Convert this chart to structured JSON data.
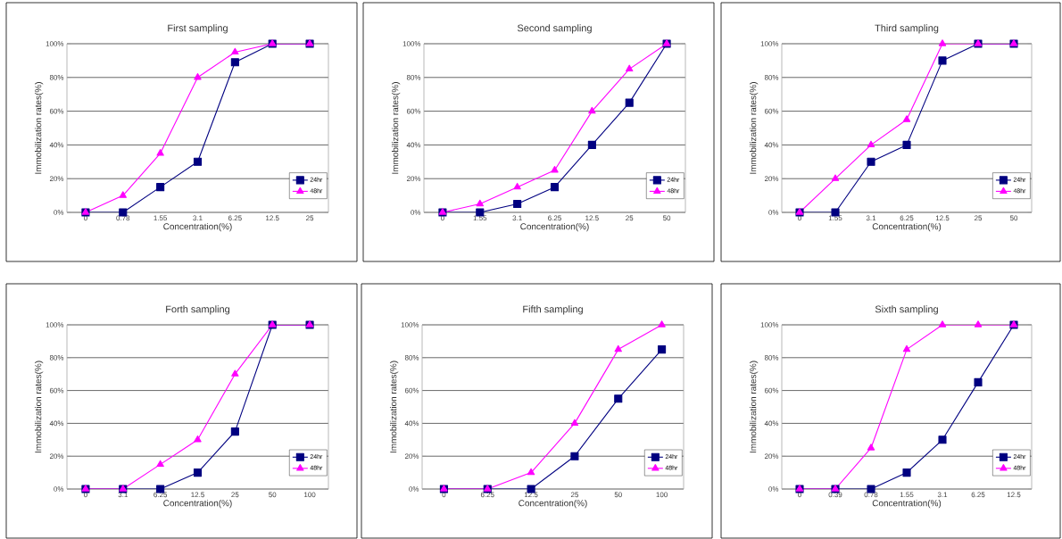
{
  "chart_data": [
    {
      "type": "line",
      "title": "First sampling",
      "xlabel": "Concentration(%)",
      "ylabel": "Immobilization rates(%)",
      "categories": [
        "0",
        "0.78",
        "1.55",
        "3.1",
        "6.25",
        "12.5",
        "25"
      ],
      "ylim": [
        0,
        100
      ],
      "yticks": [
        {
          "value": 0,
          "label": "0%"
        },
        {
          "value": 20,
          "label": "20%"
        },
        {
          "value": 40,
          "label": "40%"
        },
        {
          "value": 60,
          "label": "60%"
        },
        {
          "value": 80,
          "label": "80%"
        },
        {
          "value": 100,
          "label": "100%"
        }
      ],
      "grid": "y",
      "legend": "bottom right",
      "series": [
        {
          "name": "24hr",
          "color": "#000080",
          "marker": "square",
          "values": [
            0,
            0,
            15,
            30,
            89,
            100,
            100
          ]
        },
        {
          "name": "48hr",
          "color": "#ff00ff",
          "marker": "triangle",
          "values": [
            0,
            10,
            35,
            80,
            95,
            100,
            100
          ]
        }
      ]
    },
    {
      "type": "line",
      "title": "Second sampling",
      "xlabel": "Concentration(%)",
      "ylabel": "Immobilization rates(%)",
      "categories": [
        "0",
        "1.55",
        "3.1",
        "6.25",
        "12.5",
        "25",
        "50"
      ],
      "ylim": [
        0,
        100
      ],
      "yticks": [
        {
          "value": 0,
          "label": "0%"
        },
        {
          "value": 20,
          "label": "20%"
        },
        {
          "value": 40,
          "label": "40%"
        },
        {
          "value": 60,
          "label": "60%"
        },
        {
          "value": 80,
          "label": "80%"
        },
        {
          "value": 100,
          "label": "100%"
        }
      ],
      "grid": "y",
      "legend": "bottom right",
      "series": [
        {
          "name": "24hr",
          "color": "#000080",
          "marker": "square",
          "values": [
            0,
            0,
            5,
            15,
            40,
            65,
            100
          ]
        },
        {
          "name": "48hr",
          "color": "#ff00ff",
          "marker": "triangle",
          "values": [
            0,
            5,
            15,
            25,
            60,
            85,
            100
          ]
        }
      ]
    },
    {
      "type": "line",
      "title": "Third sampling",
      "xlabel": "Concentration(%)",
      "ylabel": "Immobilization rates(%)",
      "categories": [
        "0",
        "1.55",
        "3.1",
        "6.25",
        "12.5",
        "25",
        "50"
      ],
      "ylim": [
        0,
        100
      ],
      "yticks": [
        {
          "value": 0,
          "label": "0%"
        },
        {
          "value": 20,
          "label": "20%"
        },
        {
          "value": 40,
          "label": "40%"
        },
        {
          "value": 60,
          "label": "60%"
        },
        {
          "value": 80,
          "label": "80%"
        },
        {
          "value": 100,
          "label": "100%"
        }
      ],
      "grid": "y",
      "legend": "bottom right",
      "series": [
        {
          "name": "24hr",
          "color": "#000080",
          "marker": "square",
          "values": [
            0,
            0,
            30,
            40,
            90,
            100,
            100
          ]
        },
        {
          "name": "48hr",
          "color": "#ff00ff",
          "marker": "triangle",
          "values": [
            0,
            20,
            40,
            55,
            100,
            100,
            100
          ]
        }
      ]
    },
    {
      "type": "line",
      "title": "Forth sampling",
      "xlabel": "Concentration(%)",
      "ylabel": "Immobilization rates(%)",
      "categories": [
        "0",
        "3.1",
        "6.25",
        "12.5",
        "25",
        "50",
        "100"
      ],
      "ylim": [
        0,
        100
      ],
      "yticks": [
        {
          "value": 0,
          "label": "0%"
        },
        {
          "value": 20,
          "label": "20%"
        },
        {
          "value": 40,
          "label": "40%"
        },
        {
          "value": 60,
          "label": "60%"
        },
        {
          "value": 80,
          "label": "80%"
        },
        {
          "value": 100,
          "label": "100%"
        }
      ],
      "grid": "y",
      "legend": "bottom right",
      "series": [
        {
          "name": "24hr",
          "color": "#000080",
          "marker": "square",
          "values": [
            0,
            0,
            0,
            10,
            35,
            100,
            100
          ]
        },
        {
          "name": "48hr",
          "color": "#ff00ff",
          "marker": "triangle",
          "values": [
            0,
            0,
            15,
            30,
            70,
            100,
            100
          ]
        }
      ]
    },
    {
      "type": "line",
      "title": "Fifth sampling",
      "xlabel": "Concentration(%)",
      "ylabel": "Immobilization rates(%)",
      "categories": [
        "0",
        "6.25",
        "12.5",
        "25",
        "50",
        "100"
      ],
      "ylim": [
        0,
        100
      ],
      "yticks": [
        {
          "value": 0,
          "label": "0%"
        },
        {
          "value": 20,
          "label": "20%"
        },
        {
          "value": 40,
          "label": "40%"
        },
        {
          "value": 60,
          "label": "60%"
        },
        {
          "value": 80,
          "label": "80%"
        },
        {
          "value": 100,
          "label": "100%"
        }
      ],
      "grid": "y",
      "legend": "bottom right",
      "series": [
        {
          "name": "24hr",
          "color": "#000080",
          "marker": "square",
          "values": [
            0,
            0,
            0,
            20,
            55,
            85
          ]
        },
        {
          "name": "48hr",
          "color": "#ff00ff",
          "marker": "triangle",
          "values": [
            0,
            0,
            10,
            40,
            85,
            100
          ]
        }
      ]
    },
    {
      "type": "line",
      "title": "Sixth sampling",
      "xlabel": "Concentration(%)",
      "ylabel": "Immobilization rates(%)",
      "categories": [
        "0",
        "0.39",
        "0.78",
        "1.55",
        "3.1",
        "6.25",
        "12.5"
      ],
      "ylim": [
        0,
        100
      ],
      "yticks": [
        {
          "value": 0,
          "label": "0%"
        },
        {
          "value": 20,
          "label": "20%"
        },
        {
          "value": 40,
          "label": "40%"
        },
        {
          "value": 60,
          "label": "60%"
        },
        {
          "value": 80,
          "label": "80%"
        },
        {
          "value": 100,
          "label": "100%"
        }
      ],
      "grid": "y",
      "legend": "bottom right",
      "series": [
        {
          "name": "24hr",
          "color": "#000080",
          "marker": "square",
          "values": [
            0,
            0,
            0,
            10,
            30,
            65,
            100
          ]
        },
        {
          "name": "48hr",
          "color": "#ff00ff",
          "marker": "triangle",
          "values": [
            0,
            0,
            25,
            85,
            100,
            100,
            100
          ]
        }
      ]
    }
  ]
}
